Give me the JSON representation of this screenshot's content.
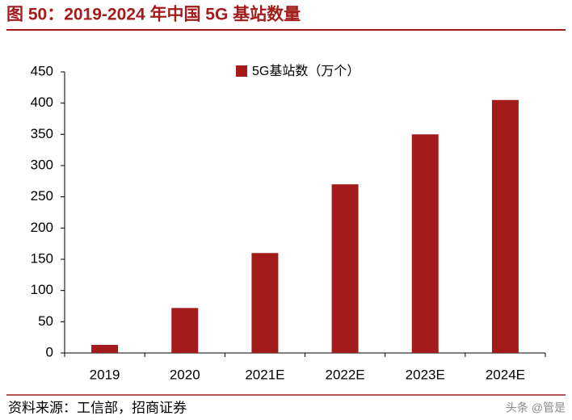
{
  "chart_data": {
    "type": "bar",
    "title": "图 50：2019-2024 年中国 5G 基站数量",
    "source": "资料来源：工信部，招商证券",
    "watermark": "头条 @管是",
    "categories": [
      "2019",
      "2020",
      "2021E",
      "2022E",
      "2023E",
      "2024E"
    ],
    "series": [
      {
        "name": "5G基站数（万个）",
        "color": "#a31b1b",
        "values": [
          13,
          72,
          160,
          270,
          350,
          405
        ]
      }
    ],
    "ylim": [
      0,
      450
    ],
    "yticks": [
      0,
      50,
      100,
      150,
      200,
      250,
      300,
      350,
      400,
      450
    ],
    "grid": false,
    "legend": "top"
  }
}
